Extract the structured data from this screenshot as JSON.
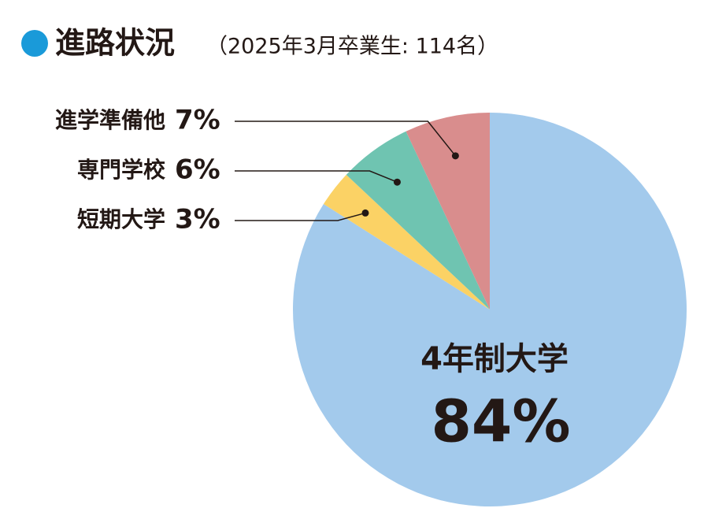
{
  "chart_data": {
    "type": "pie",
    "title": "進路状況",
    "subtitle": "（2025年3月卒業生: 114名）",
    "categories": [
      "4年制大学",
      "短期大学",
      "専門学校",
      "進学準備他"
    ],
    "values": [
      84,
      3,
      6,
      7
    ],
    "value_labels": [
      "84%",
      "3%",
      "6%",
      "7%"
    ],
    "colors": [
      "#a3caec",
      "#fbd265",
      "#6fc4b1",
      "#d98d8d"
    ]
  }
}
